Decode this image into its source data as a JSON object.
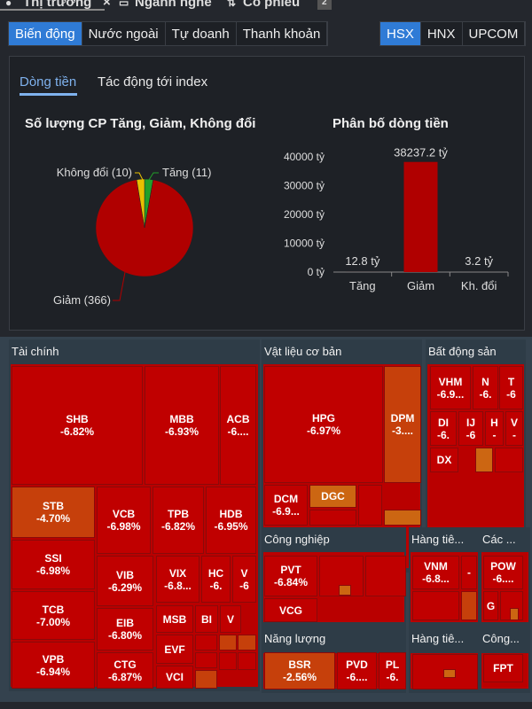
{
  "top_tabs": [
    "Thị trường",
    "Ngành nghề",
    "Cổ phiếu",
    "2"
  ],
  "view_buttons": [
    {
      "label": "Biến động",
      "active": true
    },
    {
      "label": "Nước ngoài"
    },
    {
      "label": "Tự doanh"
    },
    {
      "label": "Thanh khoản"
    }
  ],
  "exchange_buttons": [
    {
      "label": "HSX",
      "active": true
    },
    {
      "label": "HNX"
    },
    {
      "label": "UPCOM"
    }
  ],
  "panel_tabs": [
    {
      "label": "Dòng tiền",
      "active": true
    },
    {
      "label": "Tác động tới index"
    }
  ],
  "colors": {
    "accent": "#2f7bd6",
    "down": "#c00000",
    "up": "#22a02a",
    "flat": "#e8c000"
  },
  "chart_data": [
    {
      "type": "pie",
      "title": "Số lượng CP Tăng, Giảm, Không đổi",
      "labels": [
        "Tăng (11)",
        "Không đổi (10)",
        "Giảm (366)"
      ],
      "values": [
        11,
        10,
        366
      ],
      "colors": [
        "#22a02a",
        "#e8c000",
        "#b00000"
      ]
    },
    {
      "type": "bar",
      "title": "Phân bố dòng tiền",
      "categories": [
        "Tăng",
        "Giảm",
        "Kh. đổi"
      ],
      "values": [
        12.8,
        38237.2,
        3.2
      ],
      "data_labels": [
        "12.8 tỷ",
        "38237.2 tỷ",
        "3.2 tỷ"
      ],
      "ylim": [
        0,
        40000
      ],
      "yticks": [
        "0 tỷ",
        "10000 tỷ",
        "20000 tỷ",
        "30000 tỷ",
        "40000 tỷ"
      ]
    }
  ],
  "treemap": {
    "groups": [
      "Tài chính",
      "Vật liệu cơ bản",
      "Bất động sản",
      "Công nghiệp",
      "Hàng tiê...",
      "Các ...",
      "Năng lượng",
      "Hàng tiê...",
      "Công..."
    ],
    "tiles": [
      {
        "s": "SHB",
        "v": "-6.82%"
      },
      {
        "s": "MBB",
        "v": "-6.93%"
      },
      {
        "s": "ACB",
        "v": "-6...."
      },
      {
        "s": "STB",
        "v": "-4.70%"
      },
      {
        "s": "VCB",
        "v": "-6.98%"
      },
      {
        "s": "TPB",
        "v": "-6.82%"
      },
      {
        "s": "HDB",
        "v": "-6.95%"
      },
      {
        "s": "SSI",
        "v": "-6.98%"
      },
      {
        "s": "TCB",
        "v": "-7.00%"
      },
      {
        "s": "VPB",
        "v": "-6.94%"
      },
      {
        "s": "VIB",
        "v": "-6.29%"
      },
      {
        "s": "EIB",
        "v": "-6.80%"
      },
      {
        "s": "CTG",
        "v": "-6.87%"
      },
      {
        "s": "VIX",
        "v": "-6.8..."
      },
      {
        "s": "HC",
        "v": "-6."
      },
      {
        "s": "V",
        "v": "-6"
      },
      {
        "s": "MSB",
        "v": ""
      },
      {
        "s": "BI",
        "v": ""
      },
      {
        "s": "V",
        "v": ""
      },
      {
        "s": "EVF",
        "v": ""
      },
      {
        "s": "VCI",
        "v": ""
      },
      {
        "s": "HPG",
        "v": "-6.97%"
      },
      {
        "s": "DPM",
        "v": "-3...."
      },
      {
        "s": "DCM",
        "v": "-6.9..."
      },
      {
        "s": "DGC",
        "v": ""
      },
      {
        "s": "VHM",
        "v": "-6.9..."
      },
      {
        "s": "N",
        "v": "-6."
      },
      {
        "s": "T",
        "v": "-6"
      },
      {
        "s": "DI",
        "v": "-6."
      },
      {
        "s": "IJ",
        "v": "-6"
      },
      {
        "s": "H",
        "v": "-"
      },
      {
        "s": "V",
        "v": "-"
      },
      {
        "s": "DX",
        "v": ""
      },
      {
        "s": "PVT",
        "v": "-6.84%"
      },
      {
        "s": "VCG",
        "v": ""
      },
      {
        "s": "VNM",
        "v": "-6.8..."
      },
      {
        "s": "",
        "v": "-"
      },
      {
        "s": "POW",
        "v": "-6...."
      },
      {
        "s": "G",
        "v": ""
      },
      {
        "s": "BSR",
        "v": "-2.56%"
      },
      {
        "s": "PVD",
        "v": "-6...."
      },
      {
        "s": "PL",
        "v": "-6."
      },
      {
        "s": "FPT",
        "v": ""
      }
    ]
  }
}
